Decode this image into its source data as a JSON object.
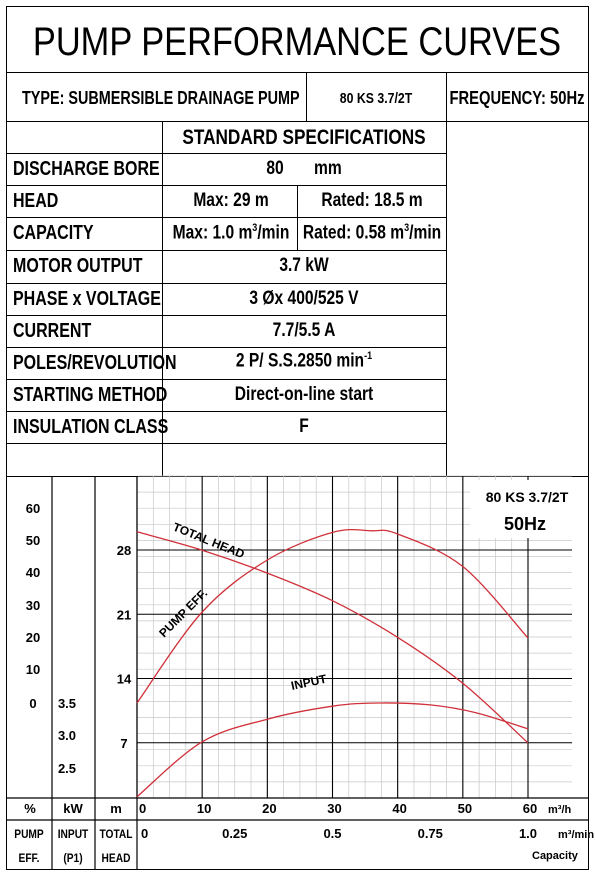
{
  "title": "PUMP PERFORMANCE CURVES",
  "type_label": "TYPE: SUBMERSIBLE  DRAINAGE  PUMP",
  "model": "80 KS 3.7/2T",
  "frequency": "FREQUENCY: 50Hz",
  "specs_heading": "STANDARD SPECIFICATIONS",
  "specs": {
    "discharge_bore": {
      "label": "DISCHARGE BORE",
      "value": "80",
      "unit": "mm"
    },
    "head": {
      "label": "HEAD",
      "max": "Max: 29 m",
      "rated": "Rated: 18.5 m"
    },
    "capacity": {
      "label": "CAPACITY",
      "max_pre": "Max: 1.0 m",
      "max_post": "/min",
      "rated_pre": "Rated: 0.58 m",
      "rated_post": "/min",
      "sup": "3"
    },
    "motor_output": {
      "label": "MOTOR OUTPUT",
      "value": "3.7  kW"
    },
    "phase_voltage": {
      "label": "PHASE x VOLTAGE",
      "value": "3 Øx 400/525 V"
    },
    "current": {
      "label": "CURRENT",
      "value": "7.7/5.5 A"
    },
    "poles": {
      "label": "POLES/REVOLUTION",
      "value": "2 P/ S.S.2850 min",
      "sup": "-1"
    },
    "starting": {
      "label": "STARTING METHOD",
      "value": "Direct-on-line start"
    },
    "insulation": {
      "label": "INSULATION CLASS",
      "value": "F"
    }
  },
  "chart_data": {
    "type": "line",
    "legend_model": "80 KS 3.7/2T",
    "legend_freq": "50Hz",
    "x_unit": "m³/h",
    "x_ticks": [
      "0",
      "10",
      "20",
      "30",
      "40",
      "50",
      "60"
    ],
    "x2_unit": "m³/min",
    "x2_ticks": [
      "0",
      "0.25",
      "0.5",
      "0.75",
      "1.0"
    ],
    "x2_label": "Capacity",
    "xlim": [
      0,
      60
    ],
    "eff_ticks": [
      "60",
      "50",
      "40",
      "30",
      "20",
      "10",
      "0"
    ],
    "eff_ylim": [
      0,
      60
    ],
    "input_ticks": [
      "3.5",
      "3.0",
      "2.5"
    ],
    "input_ylim": [
      2.0,
      3.5
    ],
    "head_ticks": [
      "28",
      "21",
      "14",
      "7"
    ],
    "head_ylim": [
      0,
      28
    ],
    "axis_units": {
      "eff": "%",
      "input": "kW",
      "head": "m"
    },
    "axis_names": {
      "eff": [
        "PUMP",
        "EFF."
      ],
      "input": [
        "INPUT",
        "(P1)"
      ],
      "head": [
        "TOTAL",
        "HEAD"
      ]
    },
    "series": [
      {
        "name": "TOTAL HEAD",
        "axis": "head",
        "color": "#d0303a",
        "x": [
          0,
          10,
          20,
          30,
          40,
          50,
          60
        ],
        "y": [
          29,
          27,
          24.5,
          21.5,
          17.5,
          12.5,
          6
        ]
      },
      {
        "name": "PUMP EFF.",
        "axis": "eff",
        "color": "#d0303a",
        "x": [
          0,
          10,
          20,
          30,
          36,
          40,
          50,
          60
        ],
        "y": [
          0,
          28,
          44,
          52.5,
          53,
          52,
          42,
          20
        ]
      },
      {
        "name": "INPUT",
        "axis": "input",
        "color": "#d0303a",
        "x": [
          0,
          10,
          20,
          30,
          37,
          45,
          52,
          60
        ],
        "y": [
          2.05,
          2.9,
          3.25,
          3.45,
          3.5,
          3.47,
          3.35,
          3.1
        ]
      }
    ]
  }
}
